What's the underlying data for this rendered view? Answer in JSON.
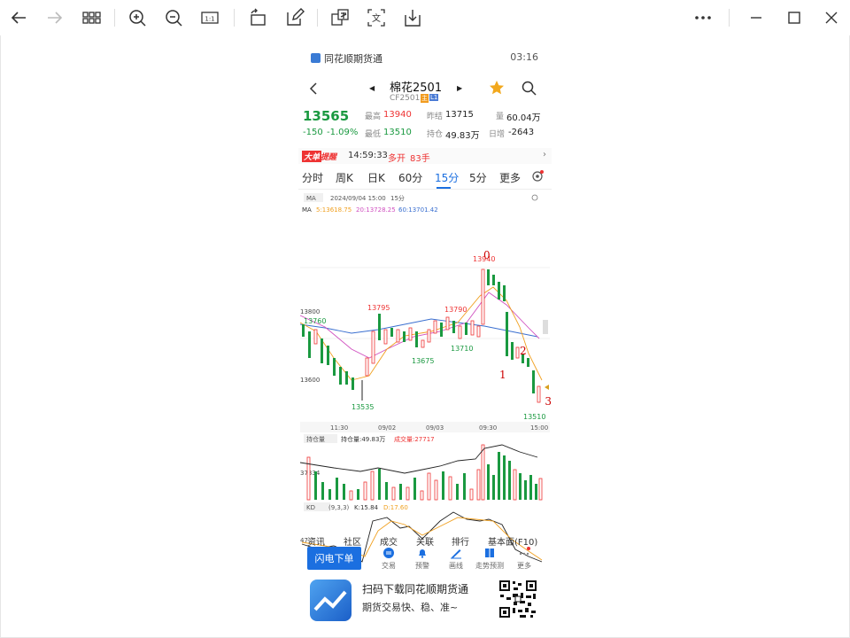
{
  "viewer": {
    "icons": [
      "back-arrow-icon",
      "forward-arrow-icon",
      "grid-icon",
      "zoom-in-icon",
      "zoom-out-icon",
      "actual-size-icon",
      "rotate-icon",
      "edit-icon",
      "translate-image-icon",
      "translate-text-icon",
      "save-icon",
      "more-icon",
      "minimize-icon",
      "maximize-icon",
      "close-icon"
    ],
    "actual_size_label": "1:1",
    "translate_label": "文"
  },
  "status": {
    "app_name": "同花顺期货通",
    "time": "03:16"
  },
  "nav": {
    "title": "棉花2501",
    "code": "CF2501",
    "badge_main": "主",
    "badge_l1": "L1"
  },
  "quote": {
    "price": "13565",
    "change": "-150",
    "change_pct": "-1.09%",
    "high_label": "最高",
    "high": "13940",
    "low_label": "最低",
    "low": "13510",
    "prev_close_label": "昨结",
    "prev_close": "13715",
    "open_interest_label": "持仓",
    "open_interest": "49.83万",
    "volume_label": "量",
    "volume": "60.04万",
    "daily_inc_label": "日增",
    "daily_inc": "-2643"
  },
  "alert": {
    "tag": "大单",
    "tag2": "提醒",
    "time": "14:59:33",
    "action": "多开",
    "amount": "83手"
  },
  "tabs": [
    {
      "label": "分时"
    },
    {
      "label": "周K"
    },
    {
      "label": "日K"
    },
    {
      "label": "60分"
    },
    {
      "label": "15分"
    },
    {
      "label": "5分"
    },
    {
      "label": "更多"
    }
  ],
  "main_chart": {
    "indicator": "MA",
    "date": "2024/09/04 15:00",
    "period": "15分",
    "ma_label": "MA",
    "ma5": "5:13618.75",
    "ma20": "20:13728.25",
    "ma60": "60:13701.42",
    "y_labels": [
      "13800",
      "13600"
    ],
    "x_labels": [
      "11:30",
      "09/02",
      "09/03",
      "09:30",
      "15:00"
    ],
    "annotations": [
      "13760",
      "13795",
      "13790",
      "13675",
      "13710",
      "13535",
      "13510",
      "13940"
    ],
    "markers": [
      "0",
      "1",
      "2",
      "3"
    ]
  },
  "oi_chart": {
    "label": "持仓量",
    "oi_text": "持仓量:49.83万",
    "vol_text": "成交量:27717",
    "y_label": "37334"
  },
  "kd_chart": {
    "label": "KD",
    "params": "(9,3,3)",
    "k": "K:15.84",
    "d": "D:17.60",
    "y_label": "47"
  },
  "bottom_tabs": [
    "资讯",
    "社区",
    "成交",
    "关联",
    "排行",
    "基本面(F10)"
  ],
  "actions": {
    "flash": "闪电下单",
    "items": [
      "交易",
      "预警",
      "画线",
      "走势预测",
      "更多"
    ]
  },
  "promo": {
    "line1": "扫码下载同花顺期货通",
    "line2": "期货交易快、稳、准~"
  },
  "colors": {
    "up": "#e33333",
    "down": "#1a9940",
    "accent": "#1b6fe0",
    "ma5": "#f0a020",
    "ma20": "#d050c0",
    "ma60": "#3a6fd0"
  }
}
